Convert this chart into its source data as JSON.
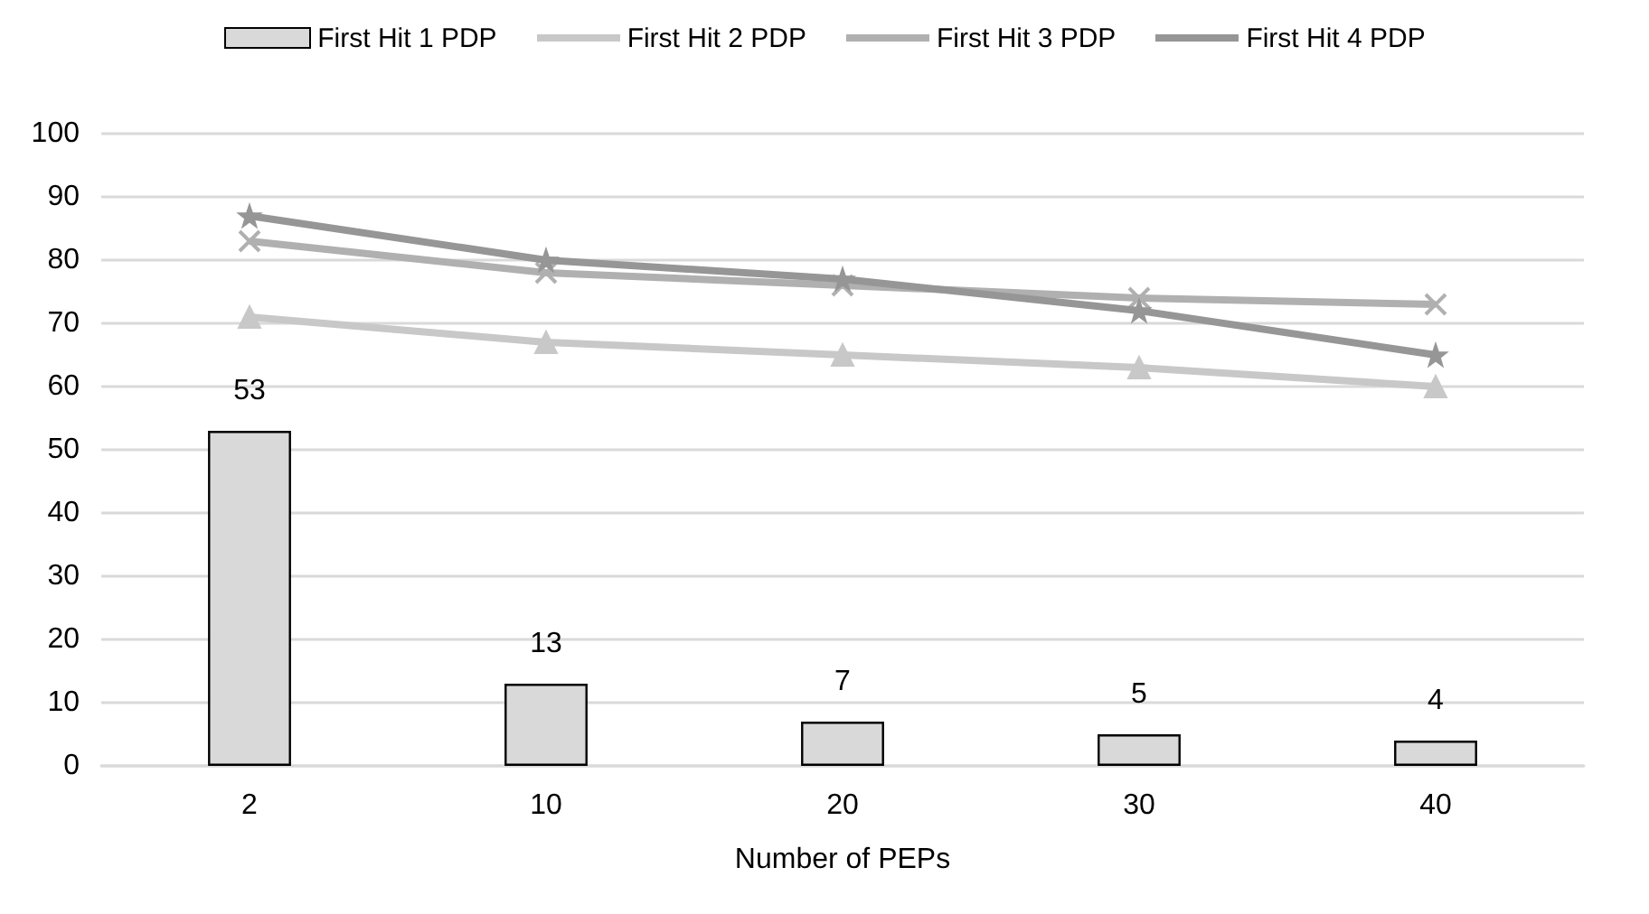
{
  "chart_data": {
    "type": "bar",
    "xlabel": "Number of PEPs",
    "categories": [
      "2",
      "10",
      "20",
      "30",
      "40"
    ],
    "series": [
      {
        "name": "First Hit 1 PDP",
        "color": "#d9d9d9",
        "values": [
          53,
          13,
          7,
          5,
          4
        ],
        "value_labels": [
          "53",
          "13",
          "7",
          "5",
          "4"
        ]
      },
      {
        "name": "First Hit 2 PDP",
        "type": "line",
        "color": "#c8c8c8",
        "marker": "triangle",
        "values": [
          71,
          67,
          65,
          63,
          60
        ]
      },
      {
        "name": "First Hit 3 PDP",
        "type": "line",
        "color": "#b0b0b0",
        "marker": "cross",
        "values": [
          83,
          78,
          76,
          74,
          73
        ]
      },
      {
        "name": "First Hit 4 PDP",
        "type": "line",
        "color": "#969696",
        "marker": "star",
        "values": [
          87,
          80,
          77,
          72,
          65
        ]
      }
    ],
    "ylim": [
      0,
      100
    ],
    "yticks": [
      0,
      10,
      20,
      30,
      40,
      50,
      60,
      70,
      80,
      90,
      100
    ],
    "grid": "y",
    "legend": "top"
  }
}
